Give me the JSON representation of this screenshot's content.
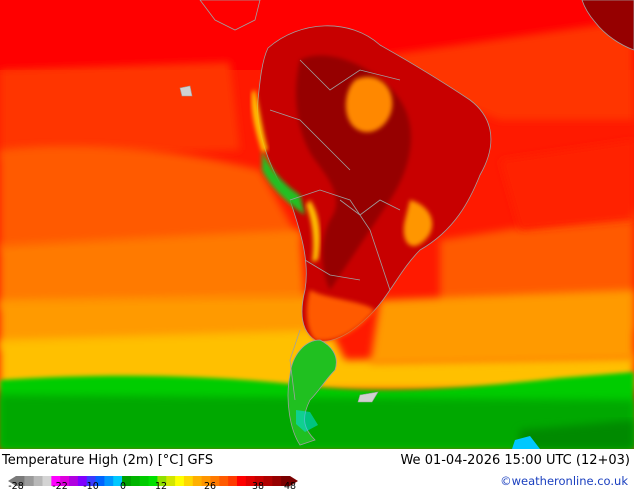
{
  "map": {
    "title": "Temperature High (2m) [°C] GFS",
    "valid_time": "We 01-04-2026 15:00 UTC (12+03)",
    "credit": "©weatheronline.co.uk",
    "legend": {
      "ticks": [
        "-28",
        "-22",
        "-10",
        "0",
        "12",
        "26",
        "38",
        "48"
      ],
      "colors": [
        "#7a7a7a",
        "#9a9a9a",
        "#b8b8b8",
        "#d4d4d4",
        "#ff00ff",
        "#dd00dd",
        "#b000e0",
        "#7f00ff",
        "#3a3aff",
        "#0064ff",
        "#0096ff",
        "#00c8ff",
        "#00a000",
        "#00b400",
        "#00cc00",
        "#00e000",
        "#90e000",
        "#d2e600",
        "#ffff00",
        "#ffd700",
        "#ffb000",
        "#ff9600",
        "#ff7a00",
        "#ff5a00",
        "#ff3a00",
        "#ff0000",
        "#e00000",
        "#c80000",
        "#b00000",
        "#960000",
        "#7a0000"
      ]
    },
    "colors": {
      "ocean_warm": "#ff0000",
      "ocean_mid": "#ff5500",
      "ocean_cool": "#ff9900",
      "ocean_cold": "#ffcc00",
      "ocean_green": "#00c800",
      "land_hot": "#c80000",
      "land_very_hot": "#960000",
      "land_highland": "#ff8800",
      "andes_green": "#20c020",
      "coast": "#a0a0a0"
    }
  }
}
